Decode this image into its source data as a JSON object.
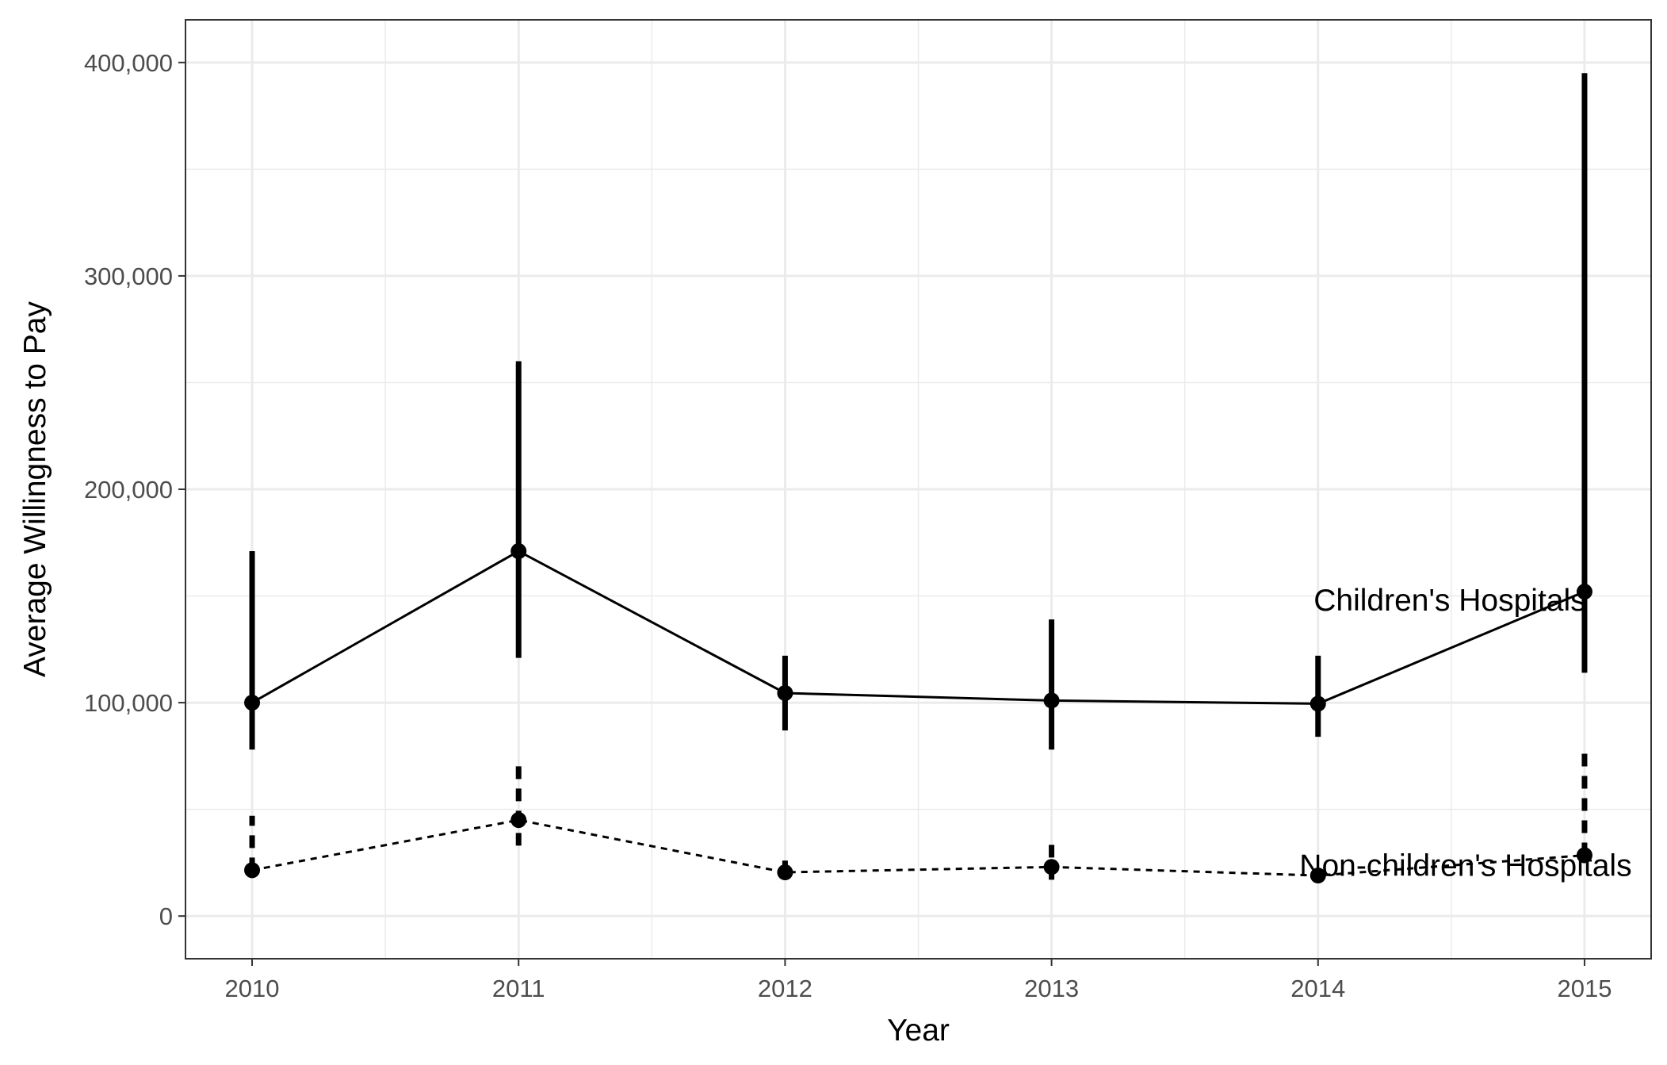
{
  "chart_data": {
    "type": "line",
    "title": "",
    "xlabel": "Year",
    "ylabel": "Average Willingness to Pay",
    "x": [
      2010,
      2011,
      2012,
      2013,
      2014,
      2015
    ],
    "x_tick_labels": [
      "2010",
      "2011",
      "2012",
      "2013",
      "2014",
      "2015"
    ],
    "y_ticks": [
      0,
      100000,
      200000,
      300000,
      400000
    ],
    "y_tick_labels": [
      "0",
      "100,000",
      "200,000",
      "300,000",
      "400,000"
    ],
    "xlim": [
      2009.75,
      2015.25
    ],
    "ylim": [
      -20000,
      420000
    ],
    "grid": true,
    "legend": "none",
    "series": [
      {
        "label": "Children's Hospitals",
        "line_style": "solid",
        "values": [
          100000,
          171000,
          104500,
          101000,
          99500,
          152000
        ],
        "lower": [
          78000,
          121000,
          87000,
          78000,
          84000,
          114000
        ],
        "upper": [
          171000,
          260000,
          122000,
          139000,
          122000,
          395000
        ]
      },
      {
        "label": "Non-children's Hospitals",
        "line_style": "dashed",
        "values": [
          21500,
          45000,
          20500,
          23000,
          19000,
          28500
        ],
        "lower": [
          21500,
          33000,
          20500,
          17000,
          19000,
          28500
        ],
        "upper": [
          47000,
          73000,
          26000,
          34000,
          19000,
          80000
        ]
      }
    ],
    "colors": {
      "line": "#000000",
      "grid": "#ebebeb",
      "panel_border": "#333333",
      "tick_text": "#4d4d4d"
    }
  }
}
